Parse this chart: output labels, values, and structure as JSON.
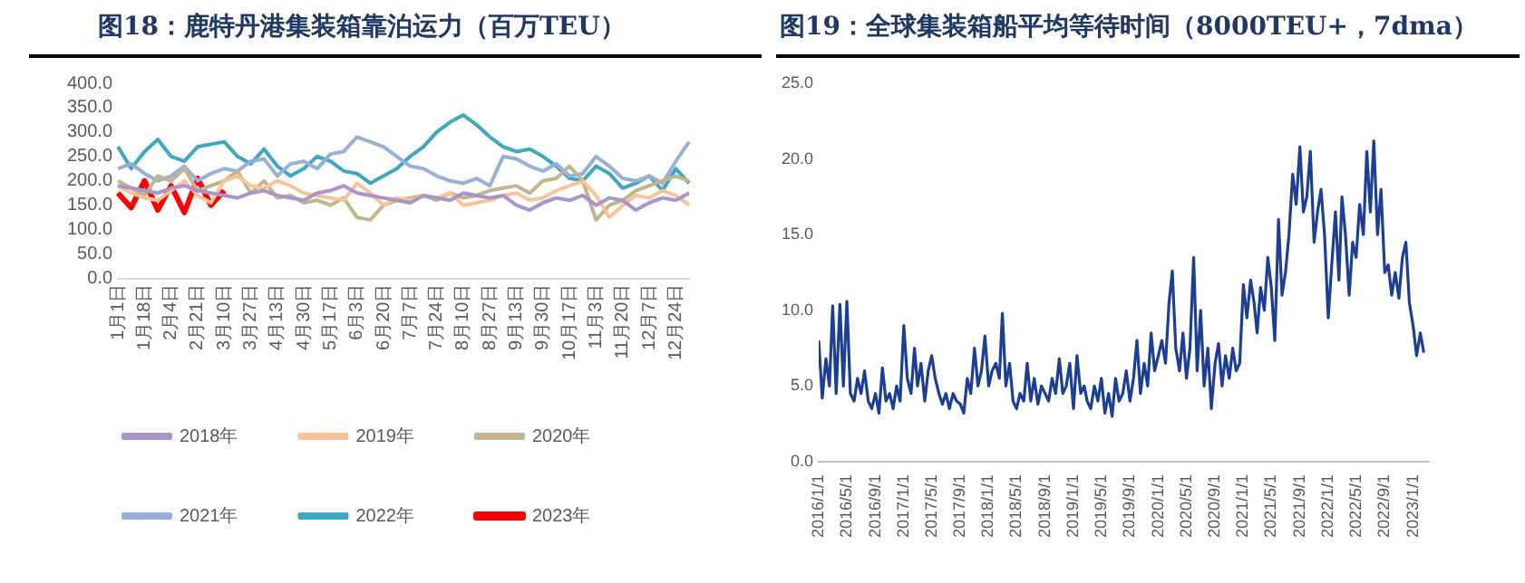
{
  "chart_data": [
    {
      "type": "line",
      "title": "图18：鹿特丹港集装箱靠泊运力（百万TEU）",
      "categories": [
        "1月1日",
        null,
        "1月18日",
        null,
        "2月4日",
        null,
        "2月21日",
        null,
        "3月10日",
        null,
        "3月27日",
        null,
        "4月13日",
        null,
        "4月30日",
        null,
        "5月17日",
        null,
        "6月3日",
        null,
        "6月20日",
        null,
        "7月7日",
        null,
        "7月24日",
        null,
        "8月10日",
        null,
        "8月27日",
        null,
        "9月13日",
        null,
        "9月30日",
        null,
        "10月17日",
        null,
        "11月3日",
        null,
        "11月20日",
        null,
        "12月7日",
        null,
        "12月24日",
        null
      ],
      "series": [
        {
          "name": "2018年",
          "color": "#a995c8",
          "values": [
            190,
            185,
            180,
            175,
            185,
            190,
            180,
            175,
            170,
            165,
            175,
            180,
            170,
            165,
            160,
            175,
            180,
            190,
            175,
            170,
            165,
            160,
            155,
            170,
            165,
            160,
            175,
            170,
            165,
            170,
            150,
            140,
            155,
            165,
            160,
            170,
            150,
            165,
            160,
            140,
            155,
            165,
            160,
            175
          ]
        },
        {
          "name": "2019年",
          "color": "#f8c39a",
          "values": [
            190,
            175,
            165,
            160,
            180,
            200,
            170,
            155,
            200,
            210,
            190,
            185,
            200,
            190,
            175,
            170,
            165,
            160,
            195,
            175,
            150,
            165,
            160,
            170,
            165,
            175,
            150,
            155,
            160,
            170,
            175,
            160,
            165,
            180,
            190,
            200,
            170,
            125,
            150,
            170,
            165,
            180,
            170,
            150
          ]
        },
        {
          "name": "2020年",
          "color": "#c2b48c",
          "values": [
            200,
            185,
            170,
            210,
            200,
            225,
            180,
            190,
            200,
            220,
            175,
            200,
            165,
            170,
            155,
            160,
            150,
            165,
            125,
            120,
            150,
            160,
            165,
            170,
            160,
            175,
            165,
            170,
            180,
            185,
            190,
            175,
            200,
            205,
            230,
            200,
            120,
            150,
            160,
            180,
            190,
            200,
            210,
            200
          ]
        },
        {
          "name": "2021年",
          "color": "#98b0d8",
          "values": [
            225,
            235,
            215,
            200,
            210,
            230,
            200,
            215,
            225,
            220,
            240,
            245,
            210,
            235,
            240,
            225,
            255,
            260,
            290,
            280,
            270,
            250,
            230,
            225,
            210,
            200,
            195,
            205,
            190,
            250,
            245,
            230,
            220,
            235,
            210,
            215,
            250,
            230,
            205,
            200,
            210,
            195,
            240,
            280
          ]
        },
        {
          "name": "2022年",
          "color": "#3fa7c0",
          "values": [
            270,
            225,
            260,
            285,
            250,
            240,
            270,
            275,
            280,
            250,
            235,
            265,
            230,
            210,
            225,
            250,
            240,
            220,
            215,
            195,
            210,
            225,
            250,
            270,
            300,
            320,
            335,
            315,
            290,
            270,
            260,
            265,
            250,
            230,
            205,
            200,
            230,
            215,
            185,
            195,
            210,
            180,
            225,
            195
          ]
        },
        {
          "name": "2023年",
          "color": "#ff0000",
          "values": [
            175,
            145,
            200,
            140,
            190,
            135,
            205,
            150,
            180,
            null,
            null,
            null,
            null,
            null,
            null,
            null,
            null,
            null,
            null,
            null,
            null,
            null,
            null,
            null,
            null,
            null,
            null,
            null,
            null,
            null,
            null,
            null,
            null,
            null,
            null,
            null,
            null,
            null,
            null,
            null,
            null,
            null,
            null,
            null
          ]
        }
      ],
      "ylim": [
        0,
        400
      ],
      "yticks": [
        {
          "value": 0,
          "label": "0.0"
        },
        {
          "value": 50,
          "label": "50.0"
        },
        {
          "value": 100,
          "label": "100.0"
        },
        {
          "value": 150,
          "label": "150.0"
        },
        {
          "value": 200,
          "label": "200.0"
        },
        {
          "value": 250,
          "label": "250.0"
        },
        {
          "value": 300,
          "label": "300.0"
        },
        {
          "value": 350,
          "label": "350.0"
        },
        {
          "value": 400,
          "label": "400.0"
        }
      ],
      "grid": false,
      "legend": "bottom",
      "marker": "none"
    },
    {
      "type": "line",
      "title": "图19：全球集装箱船平均等待时间（8000TEU+，7dma）",
      "x": [
        "2016-01-01",
        "2016-01-16",
        "2016-02-01",
        "2016-02-16",
        "2016-03-01",
        "2016-03-16",
        "2016-04-01",
        "2016-04-16",
        "2016-05-01",
        "2016-05-16",
        "2016-06-01",
        "2016-06-16",
        "2016-07-01",
        "2016-07-16",
        "2016-08-01",
        "2016-08-16",
        "2016-09-01",
        "2016-09-16",
        "2016-10-01",
        "2016-10-16",
        "2016-11-01",
        "2016-11-16",
        "2016-12-01",
        "2016-12-16",
        "2017-01-01",
        "2017-01-16",
        "2017-02-01",
        "2017-02-16",
        "2017-03-01",
        "2017-03-16",
        "2017-04-01",
        "2017-04-16",
        "2017-05-01",
        "2017-05-16",
        "2017-06-01",
        "2017-06-16",
        "2017-07-01",
        "2017-07-16",
        "2017-08-01",
        "2017-08-16",
        "2017-09-01",
        "2017-09-16",
        "2017-10-01",
        "2017-10-16",
        "2017-11-01",
        "2017-11-16",
        "2017-12-01",
        "2017-12-16",
        "2018-01-01",
        "2018-01-16",
        "2018-02-01",
        "2018-02-16",
        "2018-03-01",
        "2018-03-16",
        "2018-04-01",
        "2018-04-16",
        "2018-05-01",
        "2018-05-16",
        "2018-06-01",
        "2018-06-16",
        "2018-07-01",
        "2018-07-16",
        "2018-08-01",
        "2018-08-16",
        "2018-09-01",
        "2018-09-16",
        "2018-10-01",
        "2018-10-16",
        "2018-11-01",
        "2018-11-16",
        "2018-12-01",
        "2018-12-16",
        "2019-01-01",
        "2019-01-16",
        "2019-02-01",
        "2019-02-16",
        "2019-03-01",
        "2019-03-16",
        "2019-04-01",
        "2019-04-16",
        "2019-05-01",
        "2019-05-16",
        "2019-06-01",
        "2019-06-16",
        "2019-07-01",
        "2019-07-16",
        "2019-08-01",
        "2019-08-16",
        "2019-09-01",
        "2019-09-16",
        "2019-10-01",
        "2019-10-16",
        "2019-11-01",
        "2019-11-16",
        "2019-12-01",
        "2019-12-16",
        "2020-01-01",
        "2020-01-16",
        "2020-02-01",
        "2020-02-16",
        "2020-03-01",
        "2020-03-16",
        "2020-04-01",
        "2020-04-16",
        "2020-05-01",
        "2020-05-16",
        "2020-06-01",
        "2020-06-16",
        "2020-07-01",
        "2020-07-16",
        "2020-08-01",
        "2020-08-16",
        "2020-09-01",
        "2020-09-16",
        "2020-10-01",
        "2020-10-16",
        "2020-11-01",
        "2020-11-16",
        "2020-12-01",
        "2020-12-16",
        "2021-01-01",
        "2021-01-16",
        "2021-02-01",
        "2021-02-16",
        "2021-03-01",
        "2021-03-16",
        "2021-04-01",
        "2021-04-16",
        "2021-05-01",
        "2021-05-16",
        "2021-06-01",
        "2021-06-16",
        "2021-07-01",
        "2021-07-16",
        "2021-08-01",
        "2021-08-16",
        "2021-09-01",
        "2021-09-16",
        "2021-10-01",
        "2021-10-16",
        "2021-11-01",
        "2021-11-16",
        "2021-12-01",
        "2021-12-16",
        "2022-01-01",
        "2022-01-16",
        "2022-02-01",
        "2022-02-16",
        "2022-03-01",
        "2022-03-16",
        "2022-04-01",
        "2022-04-16",
        "2022-05-01",
        "2022-05-16",
        "2022-06-01",
        "2022-06-16",
        "2022-07-01",
        "2022-07-16",
        "2022-08-01",
        "2022-08-16",
        "2022-09-01",
        "2022-09-16",
        "2022-10-01",
        "2022-10-16",
        "2022-11-01",
        "2022-11-16",
        "2022-12-01",
        "2022-12-16",
        "2023-01-01",
        "2023-01-16",
        "2023-02-01",
        "2023-02-16"
      ],
      "series": [
        {
          "color": "#1c3e94",
          "values": [
            8.0,
            4.2,
            6.8,
            5.0,
            10.3,
            4.5,
            10.4,
            5.0,
            10.6,
            4.5,
            4.0,
            5.5,
            4.5,
            6.0,
            4.0,
            3.5,
            4.5,
            3.2,
            6.2,
            4.0,
            4.5,
            3.5,
            5.0,
            4.0,
            9.0,
            5.5,
            4.5,
            7.5,
            5.0,
            6.5,
            4.0,
            6.0,
            7.0,
            5.5,
            4.5,
            3.8,
            4.5,
            3.5,
            4.5,
            4.0,
            3.8,
            3.2,
            5.5,
            4.5,
            7.5,
            5.0,
            6.0,
            8.3,
            5.0,
            6.0,
            6.5,
            5.5,
            9.8,
            5.0,
            6.5,
            4.0,
            3.5,
            4.5,
            4.0,
            6.5,
            4.0,
            5.5,
            3.8,
            5.0,
            4.5,
            4.0,
            5.5,
            4.5,
            6.8,
            4.5,
            5.0,
            6.5,
            3.5,
            7.0,
            4.5,
            5.0,
            4.0,
            3.5,
            5.0,
            4.0,
            5.5,
            3.2,
            4.5,
            3.0,
            5.5,
            4.0,
            4.5,
            6.0,
            4.0,
            5.5,
            8.0,
            4.5,
            6.5,
            5.0,
            8.5,
            6.0,
            7.0,
            8.0,
            6.5,
            10.5,
            12.6,
            7.5,
            6.0,
            8.5,
            5.5,
            7.5,
            13.5,
            6.0,
            10.0,
            5.0,
            7.5,
            3.5,
            6.5,
            7.8,
            5.0,
            7.0,
            5.5,
            7.5,
            6.0,
            6.5,
            11.7,
            9.5,
            12.0,
            10.5,
            8.5,
            11.5,
            10.0,
            13.5,
            11.5,
            8.0,
            16.0,
            11.0,
            12.5,
            15.0,
            19.0,
            17.0,
            20.8,
            16.5,
            17.5,
            20.5,
            14.5,
            16.5,
            18.0,
            15.0,
            9.5,
            13.0,
            16.5,
            12.0,
            17.5,
            15.0,
            11.0,
            14.5,
            13.5,
            17.0,
            15.0,
            20.5,
            16.5,
            21.2,
            15.0,
            18.0,
            12.5,
            13.0,
            11.0,
            12.5,
            10.8,
            13.5,
            14.5,
            10.5,
            9.0,
            7.0,
            8.5,
            7.2
          ]
        }
      ],
      "xlim": [
        "2016-01-01",
        "2023-03-10"
      ],
      "xticks": [
        {
          "value": "2016-01-01",
          "label": "2016/1/1"
        },
        {
          "value": "2016-05-01",
          "label": "2016/5/1"
        },
        {
          "value": "2016-09-01",
          "label": "2016/9/1"
        },
        {
          "value": "2017-01-01",
          "label": "2017/1/1"
        },
        {
          "value": "2017-05-01",
          "label": "2017/5/1"
        },
        {
          "value": "2017-09-01",
          "label": "2017/9/1"
        },
        {
          "value": "2018-01-01",
          "label": "2018/1/1"
        },
        {
          "value": "2018-05-01",
          "label": "2018/5/1"
        },
        {
          "value": "2018-09-01",
          "label": "2018/9/1"
        },
        {
          "value": "2019-01-01",
          "label": "2019/1/1"
        },
        {
          "value": "2019-05-01",
          "label": "2019/5/1"
        },
        {
          "value": "2019-09-01",
          "label": "2019/9/1"
        },
        {
          "value": "2020-01-01",
          "label": "2020/1/1"
        },
        {
          "value": "2020-05-01",
          "label": "2020/5/1"
        },
        {
          "value": "2020-09-01",
          "label": "2020/9/1"
        },
        {
          "value": "2021-01-01",
          "label": "2021/1/1"
        },
        {
          "value": "2021-05-01",
          "label": "2021/5/1"
        },
        {
          "value": "2021-09-01",
          "label": "2021/9/1"
        },
        {
          "value": "2022-01-01",
          "label": "2022/1/1"
        },
        {
          "value": "2022-05-01",
          "label": "2022/5/1"
        },
        {
          "value": "2022-09-01",
          "label": "2022/9/1"
        },
        {
          "value": "2023-01-01",
          "label": "2023/1/1"
        }
      ],
      "ylim": [
        0,
        25
      ],
      "yticks": [
        {
          "value": 0,
          "label": "0.0"
        },
        {
          "value": 5,
          "label": "5.0"
        },
        {
          "value": 10,
          "label": "10.0"
        },
        {
          "value": 15,
          "label": "15.0"
        },
        {
          "value": 20,
          "label": "20.0"
        },
        {
          "value": 25,
          "label": "25.0"
        }
      ],
      "grid": false,
      "marker": "none"
    }
  ]
}
